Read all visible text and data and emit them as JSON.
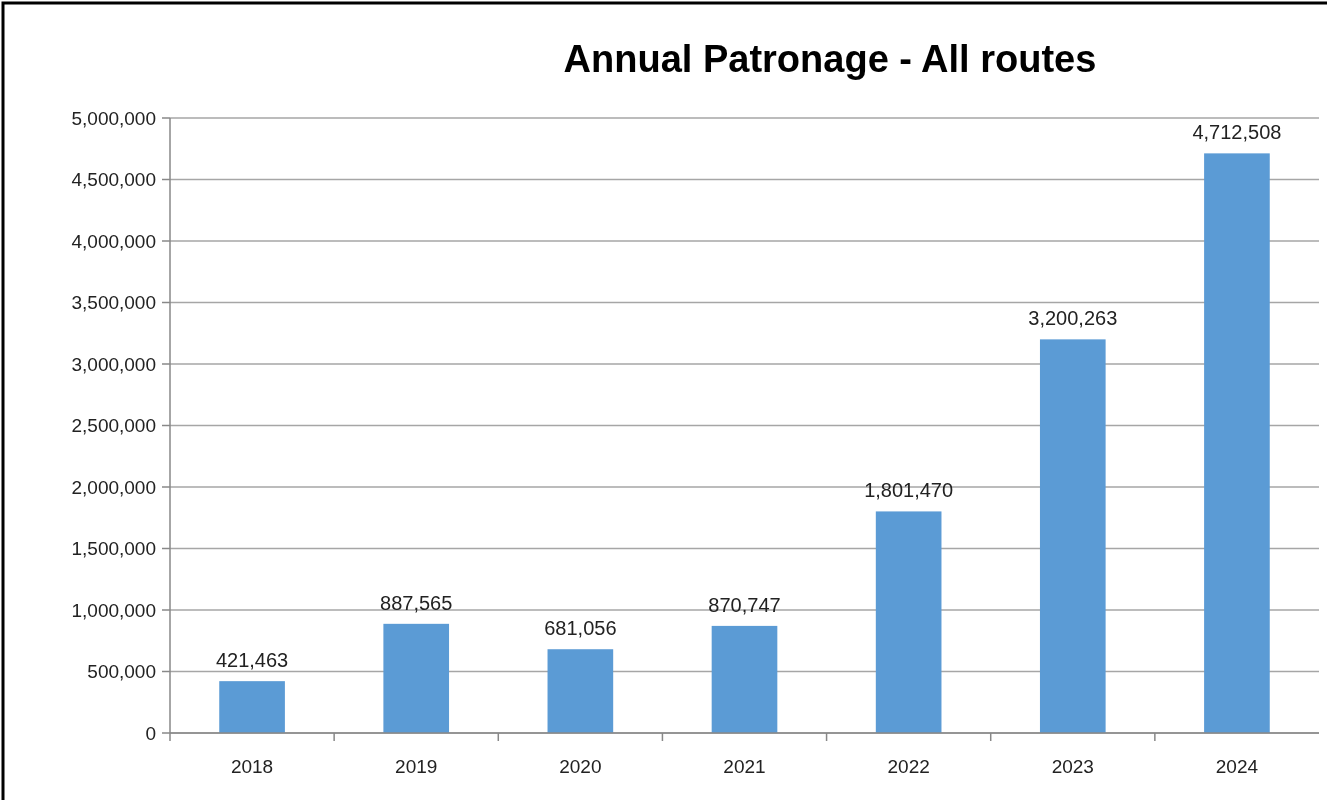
{
  "chart_data": {
    "type": "bar",
    "title": "Annual Patronage - All routes",
    "categories": [
      "2018",
      "2019",
      "2020",
      "2021",
      "2022",
      "2023",
      "2024"
    ],
    "values": [
      421463,
      887565,
      681056,
      870747,
      1801470,
      3200263,
      4712508
    ],
    "value_labels": [
      "421,463",
      "887,565",
      "681,056",
      "870,747",
      "1,801,470",
      "3,200,263",
      "4,712,508"
    ],
    "color": "#5b9bd5",
    "grid": "y",
    "ylim": [
      0,
      5000000
    ],
    "yticks": [
      {
        "value": 0,
        "label": "0"
      },
      {
        "value": 500000,
        "label": "500,000"
      },
      {
        "value": 1000000,
        "label": "1,000,000"
      },
      {
        "value": 1500000,
        "label": "1,500,000"
      },
      {
        "value": 2000000,
        "label": "2,000,000"
      },
      {
        "value": 2500000,
        "label": "2,500,000"
      },
      {
        "value": 3000000,
        "label": "3,000,000"
      },
      {
        "value": 3500000,
        "label": "3,500,000"
      },
      {
        "value": 4000000,
        "label": "4,000,000"
      },
      {
        "value": 4500000,
        "label": "4,500,000"
      },
      {
        "value": 5000000,
        "label": "5,000,000"
      }
    ]
  }
}
